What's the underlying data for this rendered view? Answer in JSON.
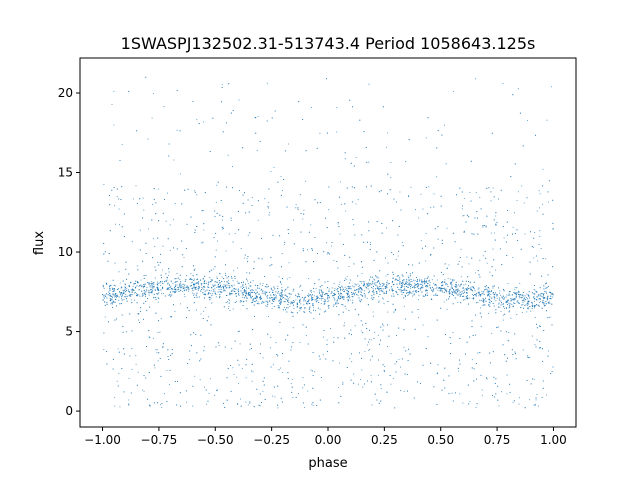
{
  "chart_data": {
    "type": "scatter",
    "title": "1SWASPJ132502.31-513743.4 Period 1058643.125s",
    "xlabel": "phase",
    "ylabel": "flux",
    "xlim": [
      -1.1,
      1.1
    ],
    "ylim": [
      -1.0,
      22.2
    ],
    "xticks": [
      -1.0,
      -0.75,
      -0.5,
      -0.25,
      0.0,
      0.25,
      0.5,
      0.75,
      1.0
    ],
    "xtick_labels": [
      "−1.00",
      "−0.75",
      "−0.50",
      "−0.25",
      "0.00",
      "0.25",
      "0.50",
      "0.75",
      "1.00"
    ],
    "yticks": [
      0,
      5,
      10,
      15,
      20
    ],
    "ytick_labels": [
      "0",
      "5",
      "10",
      "15",
      "20"
    ],
    "grid": false,
    "marker_color": "#1f77b4",
    "series": [
      {
        "x": [
          -1.0,
          -0.9,
          -0.8,
          -0.7,
          -0.6,
          -0.5,
          -0.4,
          -0.3,
          -0.2,
          -0.1,
          0.0,
          0.1,
          0.2,
          0.3,
          0.4,
          0.5,
          0.6,
          0.7,
          0.8,
          0.9,
          1.0
        ],
        "y": [
          7.2,
          7.4,
          7.7,
          7.9,
          7.9,
          7.8,
          7.6,
          7.3,
          7.0,
          6.9,
          7.2,
          7.5,
          7.7,
          7.9,
          7.9,
          7.8,
          7.6,
          7.3,
          7.0,
          6.9,
          7.2
        ]
      }
    ]
  }
}
